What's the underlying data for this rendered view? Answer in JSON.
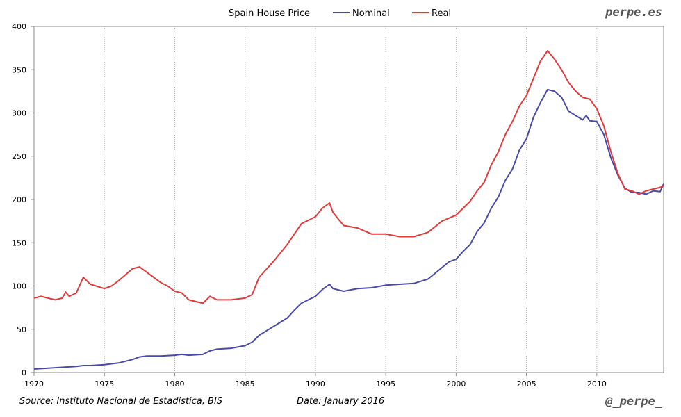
{
  "chart_data": {
    "type": "line",
    "title": "Spain House Price",
    "xlabel": "",
    "ylabel": "",
    "xlim": [
      1970,
      2014.75
    ],
    "ylim": [
      0,
      400
    ],
    "x_ticks": [
      1970,
      1975,
      1980,
      1985,
      1990,
      1995,
      2000,
      2005,
      2010
    ],
    "y_ticks": [
      0,
      50,
      100,
      150,
      200,
      250,
      300,
      350,
      400
    ],
    "grid": "vertical-dotted",
    "legend_position": "top-center",
    "series": [
      {
        "name": "Nominal",
        "color": "#4a4aa8",
        "points": [
          [
            1970,
            4
          ],
          [
            1971,
            5
          ],
          [
            1972,
            6
          ],
          [
            1973,
            7
          ],
          [
            1973.5,
            8
          ],
          [
            1974,
            8
          ],
          [
            1975,
            9
          ],
          [
            1976,
            11
          ],
          [
            1977,
            15
          ],
          [
            1977.5,
            18
          ],
          [
            1978,
            19
          ],
          [
            1979,
            19
          ],
          [
            1980,
            20
          ],
          [
            1980.5,
            21
          ],
          [
            1981,
            20
          ],
          [
            1982,
            21
          ],
          [
            1982.5,
            25
          ],
          [
            1983,
            27
          ],
          [
            1984,
            28
          ],
          [
            1985,
            31
          ],
          [
            1985.5,
            35
          ],
          [
            1986,
            43
          ],
          [
            1987,
            53
          ],
          [
            1988,
            63
          ],
          [
            1988.5,
            72
          ],
          [
            1989,
            80
          ],
          [
            1990,
            88
          ],
          [
            1990.5,
            96
          ],
          [
            1991,
            102
          ],
          [
            1991.25,
            97
          ],
          [
            1992,
            94
          ],
          [
            1993,
            97
          ],
          [
            1994,
            98
          ],
          [
            1995,
            101
          ],
          [
            1996,
            102
          ],
          [
            1997,
            103
          ],
          [
            1998,
            108
          ],
          [
            1998.75,
            118
          ],
          [
            1999.5,
            128
          ],
          [
            2000,
            131
          ],
          [
            2000.5,
            140
          ],
          [
            2001,
            148
          ],
          [
            2001.5,
            163
          ],
          [
            2002,
            173
          ],
          [
            2002.5,
            190
          ],
          [
            2003,
            203
          ],
          [
            2003.5,
            222
          ],
          [
            2004,
            235
          ],
          [
            2004.5,
            257
          ],
          [
            2005,
            270
          ],
          [
            2005.5,
            295
          ],
          [
            2006,
            312
          ],
          [
            2006.5,
            327
          ],
          [
            2007,
            325
          ],
          [
            2007.5,
            318
          ],
          [
            2008,
            302
          ],
          [
            2009,
            292
          ],
          [
            2009.25,
            297
          ],
          [
            2009.5,
            291
          ],
          [
            2010,
            290
          ],
          [
            2010.5,
            275
          ],
          [
            2011,
            248
          ],
          [
            2011.5,
            228
          ],
          [
            2012,
            213
          ],
          [
            2012.5,
            208
          ],
          [
            2013,
            208
          ],
          [
            2013.5,
            206
          ],
          [
            2014,
            210
          ],
          [
            2014.5,
            209
          ],
          [
            2014.75,
            218
          ]
        ]
      },
      {
        "name": "Real",
        "color": "#e03a3a",
        "points": [
          [
            1970,
            86
          ],
          [
            1970.5,
            88
          ],
          [
            1971,
            86
          ],
          [
            1971.5,
            84
          ],
          [
            1972,
            86
          ],
          [
            1972.25,
            93
          ],
          [
            1972.5,
            88
          ],
          [
            1973,
            92
          ],
          [
            1973.5,
            110
          ],
          [
            1974,
            102
          ],
          [
            1975,
            97
          ],
          [
            1975.5,
            100
          ],
          [
            1976,
            106
          ],
          [
            1977,
            120
          ],
          [
            1977.5,
            122
          ],
          [
            1978,
            116
          ],
          [
            1979,
            104
          ],
          [
            1979.5,
            100
          ],
          [
            1980,
            94
          ],
          [
            1980.5,
            92
          ],
          [
            1981,
            84
          ],
          [
            1982,
            80
          ],
          [
            1982.5,
            88
          ],
          [
            1983,
            84
          ],
          [
            1984,
            84
          ],
          [
            1985,
            86
          ],
          [
            1985.5,
            90
          ],
          [
            1986,
            110
          ],
          [
            1987,
            128
          ],
          [
            1988,
            148
          ],
          [
            1989,
            172
          ],
          [
            1990,
            180
          ],
          [
            1990.5,
            190
          ],
          [
            1991,
            196
          ],
          [
            1991.25,
            185
          ],
          [
            1992,
            170
          ],
          [
            1993,
            167
          ],
          [
            1994,
            160
          ],
          [
            1995,
            160
          ],
          [
            1996,
            157
          ],
          [
            1997,
            157
          ],
          [
            1998,
            162
          ],
          [
            1999,
            175
          ],
          [
            2000,
            182
          ],
          [
            2000.5,
            190
          ],
          [
            2001,
            198
          ],
          [
            2001.5,
            210
          ],
          [
            2002,
            220
          ],
          [
            2002.5,
            240
          ],
          [
            2003,
            255
          ],
          [
            2003.5,
            275
          ],
          [
            2004,
            290
          ],
          [
            2004.5,
            308
          ],
          [
            2005,
            320
          ],
          [
            2005.5,
            340
          ],
          [
            2006,
            360
          ],
          [
            2006.5,
            372
          ],
          [
            2007,
            362
          ],
          [
            2007.5,
            350
          ],
          [
            2008,
            335
          ],
          [
            2008.5,
            325
          ],
          [
            2009,
            318
          ],
          [
            2009.5,
            316
          ],
          [
            2010,
            305
          ],
          [
            2010.5,
            285
          ],
          [
            2011,
            255
          ],
          [
            2011.5,
            230
          ],
          [
            2012,
            212
          ],
          [
            2012.5,
            210
          ],
          [
            2013,
            206
          ],
          [
            2013.5,
            210
          ],
          [
            2014,
            212
          ],
          [
            2014.5,
            214
          ],
          [
            2014.75,
            216
          ]
        ]
      }
    ]
  },
  "brand": "perpe.es",
  "handle": "@_perpe_",
  "source_text": "Source: Instituto Nacional de Estadistica, BIS",
  "date_text": "Date: January 2016"
}
